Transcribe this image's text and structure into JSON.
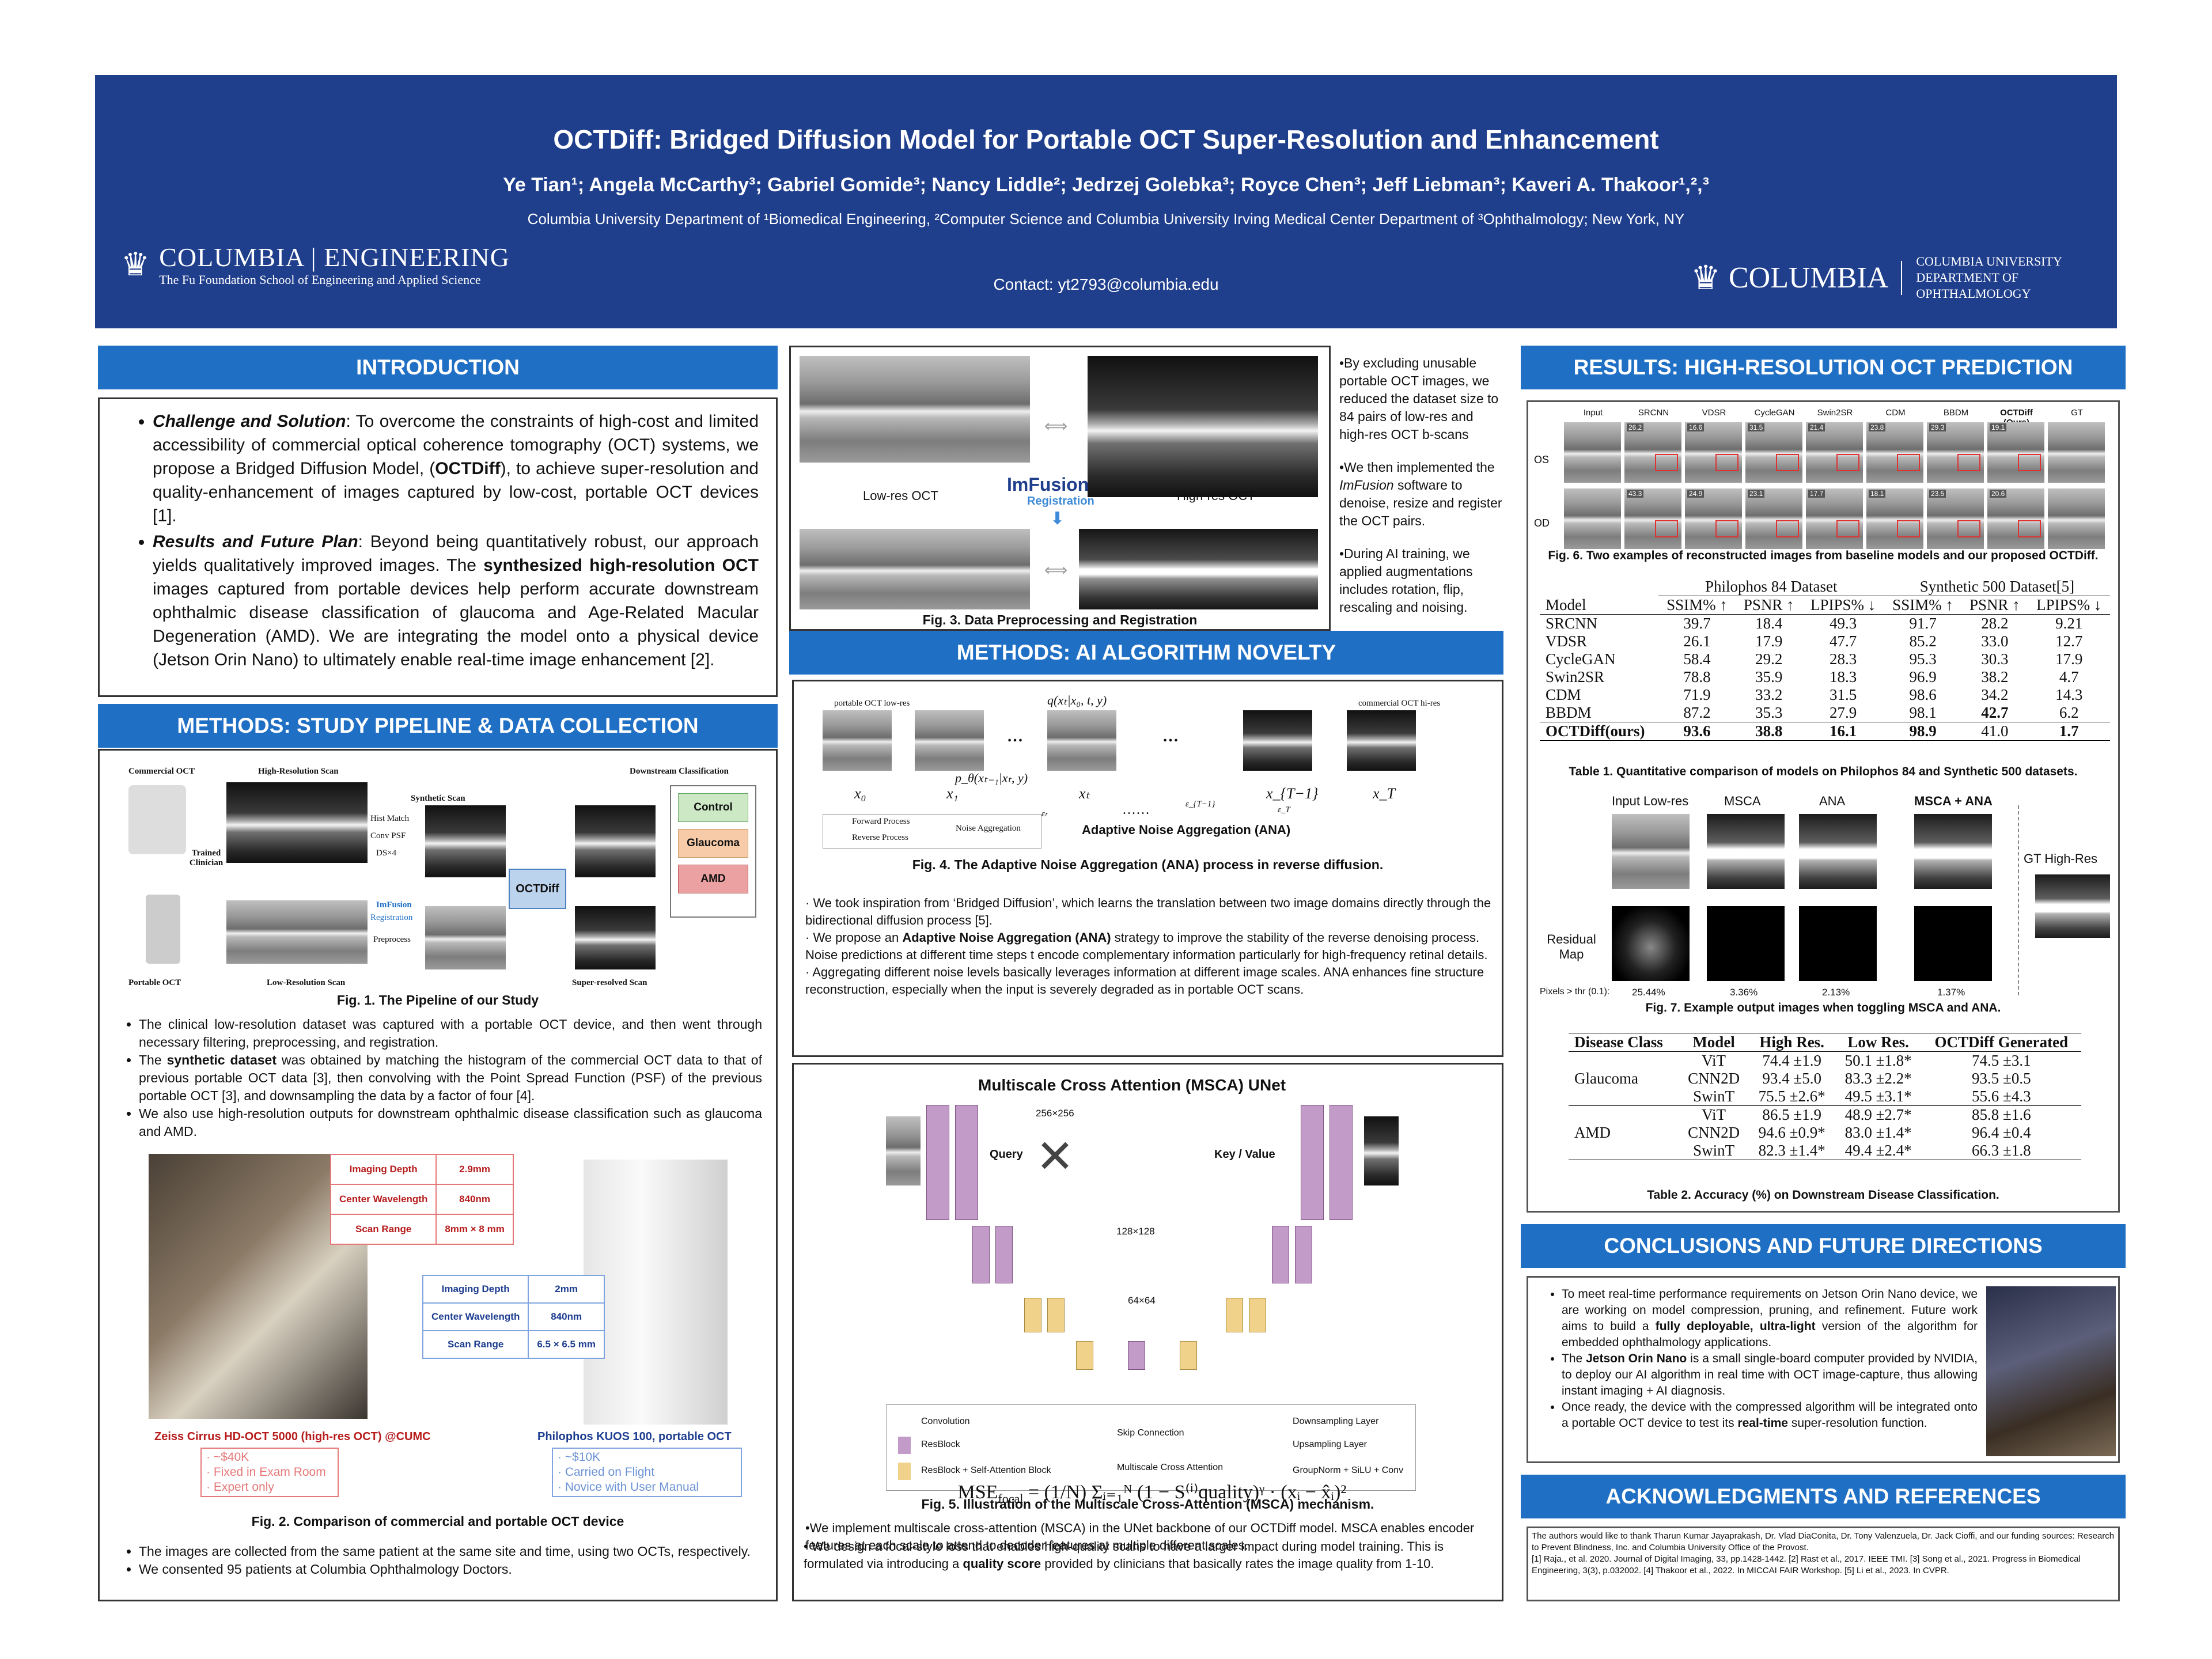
{
  "header": {
    "title": "OCTDiff: Bridged Diffusion Model for Portable OCT Super-Resolution and Enhancement",
    "authors": "Ye Tian¹; Angela McCarthy³; Gabriel Gomide³; Nancy Liddle²; Jedrzej Golebka³; Royce Chen³; Jeff Liebman³; Kaveri A. Thakoor¹,²,³",
    "affiliation": "Columbia University Department of ¹Biomedical Engineering, ²Computer Science and Columbia University Irving Medical Center Department of ³Ophthalmology; New York, NY",
    "contact": "Contact: yt2793@columbia.edu",
    "logo_left_main": "COLUMBIA | ENGINEERING",
    "logo_left_sub": "The Fu Foundation School of Engineering and Applied Science",
    "logo_right_main": "COLUMBIA",
    "logo_right_sub1": "COLUMBIA UNIVERSITY",
    "logo_right_sub2": "DEPARTMENT OF OPHTHALMOLOGY"
  },
  "intro": {
    "heading": "INTRODUCTION",
    "b1_title": "Challenge and Solution",
    "b1_text": ": To overcome the constraints of high-cost and limited accessibility of commercial optical coherence tomography (OCT) systems, we propose a Bridged Diffusion Model, (",
    "b1_bold": "OCTDiff",
    "b1_text2": "), to achieve super-resolution and quality-enhancement of images captured by low-cost, portable OCT devices [1].",
    "b2_title": "Results and Future Plan",
    "b2_text": ": Beyond being quantitatively robust, our approach yields qualitatively improved images. The ",
    "b2_bold": "synthesized high-resolution OCT",
    "b2_text2": " images captured from portable devices help perform accurate downstream ophthalmic disease classification of glaucoma and Age-Related Macular Degeneration (AMD). We are integrating the model onto a physical device (Jetson Orin Nano) to ultimately enable real-time image enhancement [2]."
  },
  "pipeline": {
    "heading": "METHODS: STUDY PIPELINE & DATA COLLECTION",
    "fig1": {
      "commercial": "Commercial OCT",
      "hr_scan": "High-Resolution Scan",
      "synthetic": "Synthetic Scan",
      "downstream": "Downstream Classification",
      "trained": "Trained Clinician",
      "hist": "Hist Match",
      "conv": "Conv PSF",
      "ds": "DS×4",
      "octdiff": "OCTDiff",
      "control": "Control",
      "glaucoma": "Glaucoma",
      "amd": "AMD",
      "imfusion": "ImFusion",
      "registration": "Registration",
      "preprocess": "Preprocess",
      "portable": "Portable OCT",
      "lr_scan": "Low-Resolution Scan",
      "sr_scan": "Super-resolved Scan"
    },
    "fig1_caption": "Fig. 1. The Pipeline of our Study",
    "bullets": [
      "The clinical low-resolution dataset was captured with a portable OCT device, and then went through necessary filtering, preprocessing, and registration."
    ],
    "b2_pre": "The ",
    "b2_bold": "synthetic dataset",
    "b2_post": " was obtained by matching the histogram of the commercial OCT data to that of previous portable OCT data [3], then convolving with the Point Spread Function (PSF) of the previous portable OCT [3], and downsampling the data by a factor of four [4].",
    "b3": "We also use high-resolution outputs for downstream ophthalmic disease classification such as glaucoma and AMD.",
    "zeiss": {
      "rows": [
        [
          "Imaging Depth",
          "2.9mm"
        ],
        [
          "Center Wavelength",
          "840nm"
        ],
        [
          "Scan Range",
          "8mm × 8 mm"
        ]
      ],
      "label": "Zeiss Cirrus HD-OCT 5000 (high-res OCT) @CUMC",
      "notes": [
        "· ~$40K",
        "· Fixed in Exam Room",
        "· Expert only"
      ]
    },
    "kuos": {
      "rows": [
        [
          "Imaging Depth",
          "2mm"
        ],
        [
          "Center Wavelength",
          "840nm"
        ],
        [
          "Scan Range",
          "6.5 × 6.5 mm"
        ]
      ],
      "label": "Philophos KUOS 100, portable OCT",
      "notes": [
        "· ~$10K",
        "· Carried on Flight",
        "· Novice with User Manual"
      ]
    },
    "fig2_caption": "Fig. 2. Comparison of commercial and portable OCT device",
    "tail": [
      "The images are collected from the same patient at the same site and time, using two OCTs, respectively.",
      "We consented 95 patients at Columbia Ophthalmology Doctors."
    ]
  },
  "fig3": {
    "lowres": "Low-res OCT",
    "highres": "High-res OCT",
    "imfusion": "ImFusion",
    "registration": "Registration",
    "caption": "Fig. 3. Data Preprocessing and Registration",
    "side1": "•By excluding unusable portable OCT images, we reduced the dataset size to 84 pairs of low-res and high-res OCT b-scans",
    "side2_pre": "•We then implemented the ",
    "side2_ital": "ImFusion",
    "side2_post": " software to denoise, resize and register the OCT pairs.",
    "side3": "•During AI training, we applied augmentations includes rotation, flip, rescaling and noising."
  },
  "ai": {
    "heading": "METHODS: AI ALGORITHM NOVELTY",
    "fig4": {
      "portable": "portable OCT low-res",
      "commercial": "commercial OCT hi-res",
      "q": "q(xₜ|x₀, t, y)",
      "p": "p_θ(xₜ₋₁|xₜ, y)",
      "x0": "x₀",
      "x1": "x₁",
      "xt": "xₜ",
      "xT1": "x_{T−1}",
      "xT": "x_T",
      "forward": "Forward Process",
      "reverse": "Reverse Process",
      "noise": "Noise Aggregation",
      "ana": "Adaptive Noise Aggregation (ANA)",
      "eps_t": "εₜ",
      "eps_T1": "ε_{T−1}",
      "eps_T": "ε_T"
    },
    "fig4_caption": "Fig. 4. The Adaptive Noise Aggregation (ANA) process in reverse diffusion.",
    "p1": "· We took inspiration from ‘Bridged Diffusion’, which learns the translation between two image domains directly through the bidirectional diffusion process [5].",
    "p2_pre": "·  We propose an ",
    "p2_bold": "Adaptive Noise Aggregation (ANA)",
    "p2_post": " strategy to improve the stability of the reverse denoising process. Noise predictions at different time steps t encode complementary information particularly for high-frequency retinal details.",
    "p3": "·  Aggregating different noise levels basically leverages information at different image scales. ANA enhances fine structure reconstruction, especially when the input is severely degraded as in portable OCT scans.",
    "fig5": {
      "title": "Multiscale Cross Attention (MSCA) UNet",
      "s256": "256×256",
      "s128": "128×128",
      "s64": "64×64",
      "query": "Query",
      "kv": "Key / Value",
      "conv": "Convolution",
      "resblock": "ResBlock",
      "resatt": "ResBlock + Self-Attention Block",
      "skip": "Skip Connection",
      "msca": "Multiscale Cross Attention",
      "down": "Downsampling Layer",
      "up": "Upsampling Layer",
      "gn": "GroupNorm + SiLU + Conv"
    },
    "fig5_caption": "Fig. 5. Illustration of the Multiscale Cross-Attention (MSCA) mechanism.",
    "p4": "•We implement multiscale cross-attention (MSCA) in the UNet backbone of our OCTDiff model. MSCA enables encoder features at each scale to attend to decoder features at multiple different scales.",
    "eq_lhs": "MSE",
    "eq_sub": "focal",
    "eq_rhs": "= (1/N) Σᵢ₌₁ᴺ (1 − S⁽ⁱ⁾quality)ᵞ · (xᵢ − x̂ᵢ)²",
    "p5_pre": "• We design a focal-style loss that enables high-quality scans to have a larger impact during model training. This is formulated via introducing a ",
    "p5_bold": "quality score",
    "p5_post": " provided by clinicians that basically rates the image quality from 1-10."
  },
  "results": {
    "heading": "RESULTS: HIGH-RESOLUTION OCT PREDICTION",
    "fig6_cols": [
      "Input",
      "SRCNN",
      "VDSR",
      "CycleGAN",
      "Swin2SR",
      "CDM",
      "BBDM",
      "OCTDiff (Ours)",
      "GT"
    ],
    "fig6_rows": [
      "OS",
      "OD"
    ],
    "fig6_os": [
      "26.2",
      "16.6",
      "31.5",
      "21.4",
      "23.8",
      "29.3",
      "19.1"
    ],
    "fig6_od": [
      "43.3",
      "24.9",
      "23.1",
      "17.7",
      "18.1",
      "23.5",
      "20.6"
    ],
    "fig6_caption": "Fig. 6. Two examples of reconstructed images from baseline models and our proposed OCTDiff.",
    "t1_group1": "Philophos 84 Dataset",
    "t1_group2": "Synthetic 500 Dataset[5]",
    "t1_header": [
      "Model",
      "SSIM% ↑",
      "PSNR ↑",
      "LPIPS% ↓",
      "SSIM% ↑",
      "PSNR ↑",
      "LPIPS% ↓"
    ],
    "t1_rows": [
      [
        "SRCNN",
        "39.7",
        "18.4",
        "49.3",
        "91.7",
        "28.2",
        "9.21"
      ],
      [
        "VDSR",
        "26.1",
        "17.9",
        "47.7",
        "85.2",
        "33.0",
        "12.7"
      ],
      [
        "CycleGAN",
        "58.4",
        "29.2",
        "28.3",
        "95.3",
        "30.3",
        "17.9"
      ],
      [
        "Swin2SR",
        "78.8",
        "35.9",
        "18.3",
        "96.9",
        "38.2",
        "4.7"
      ],
      [
        "CDM",
        "71.9",
        "33.2",
        "31.5",
        "98.6",
        "34.2",
        "14.3"
      ],
      [
        "BBDM",
        "87.2",
        "35.3",
        "27.9",
        "98.1",
        "42.7",
        "6.2"
      ]
    ],
    "t1_ours": [
      "OCTDiff(ours)",
      "93.6",
      "38.8",
      "16.1",
      "98.9",
      "41.0",
      "1.7"
    ],
    "t1_caption": "Table 1. Quantitative comparison of models on Philophos 84 and Synthetic 500 datasets.",
    "fig7_cols": [
      "Input Low-res",
      "MSCA",
      "ANA",
      "MSCA + ANA"
    ],
    "fig7_gt": "GT High-Res",
    "fig7_residual": "Residual Map",
    "fig7_pix_label": "Pixels > thr (0.1):",
    "fig7_pix": [
      "25.44%",
      "3.36%",
      "2.13%",
      "1.37%"
    ],
    "fig7_caption": "Fig. 7. Example output images when toggling MSCA and ANA.",
    "t2_header": [
      "Disease Class",
      "Model",
      "High Res.",
      "Low Res.",
      "OCTDiff Generated"
    ],
    "t2_glaucoma": "Glaucoma",
    "t2_amd": "AMD",
    "t2_g": [
      [
        "ViT",
        "74.4 ±1.9",
        "50.1 ±1.8*",
        "74.5 ±3.1"
      ],
      [
        "CNN2D",
        "93.4 ±5.0",
        "83.3 ±2.2*",
        "93.5 ±0.5"
      ],
      [
        "SwinT",
        "75.5 ±2.6*",
        "49.5 ±3.1*",
        "55.6 ±4.3"
      ]
    ],
    "t2_a": [
      [
        "ViT",
        "86.5 ±1.9",
        "48.9 ±2.7*",
        "85.8 ±1.6"
      ],
      [
        "CNN2D",
        "94.6 ±0.9*",
        "83.0 ±1.4*",
        "96.4 ±0.4"
      ],
      [
        "SwinT",
        "82.3 ±1.4*",
        "49.4 ±2.4*",
        "66.3 ±1.8"
      ]
    ],
    "t2_caption": "Table 2. Accuracy (%) on Downstream Disease Classification."
  },
  "conclusions": {
    "heading": "CONCLUSIONS AND FUTURE DIRECTIONS",
    "c1_pre": "To meet real-time performance requirements on Jetson Orin Nano device, we are working on model compression, pruning, and refinement. Future work aims to build a ",
    "c1_bold": "fully deployable, ultra-light",
    "c1_post": " version of the algorithm for embedded ophthalmology applications.",
    "c2_pre": "The ",
    "c2_bold": "Jetson Orin Nano",
    "c2_post": " is a small single-board computer provided by NVIDIA, to deploy our AI algorithm in real time with OCT image-capture, thus allowing instant imaging + AI diagnosis.",
    "c3_pre": "Once ready, the device with the compressed algorithm will be integrated onto a portable OCT device to test its ",
    "c3_bold": "real-time",
    "c3_post": " super-resolution function."
  },
  "ack": {
    "heading": "ACKNOWLEDGMENTS AND REFERENCES",
    "text": "The authors would like to thank Tharun Kumar Jayaprakash, Dr. Vlad DiaConita, Dr. Tony Valenzuela, Dr. Jack Cioffi, and our funding sources: Research to Prevent Blindness, Inc. and Columbia University Office of the Provost.",
    "refs": "[1] Raja., et al. 2020. Journal of Digital Imaging, 33, pp.1428-1442. [2] Rast et al., 2017. IEEE TMI. [3] Song et al., 2021. Progress in Biomedical Engineering, 3(3), p.032002. [4] Thakoor et al., 2022. In MICCAI FAIR Workshop. [5] Li et al., 2023. In CVPR."
  },
  "colors": {
    "header": "#1f3e8c",
    "section": "#1f6fc5",
    "control": "#cde8c4",
    "glaucoma": "#f7cba8",
    "amd": "#eba1a1"
  }
}
